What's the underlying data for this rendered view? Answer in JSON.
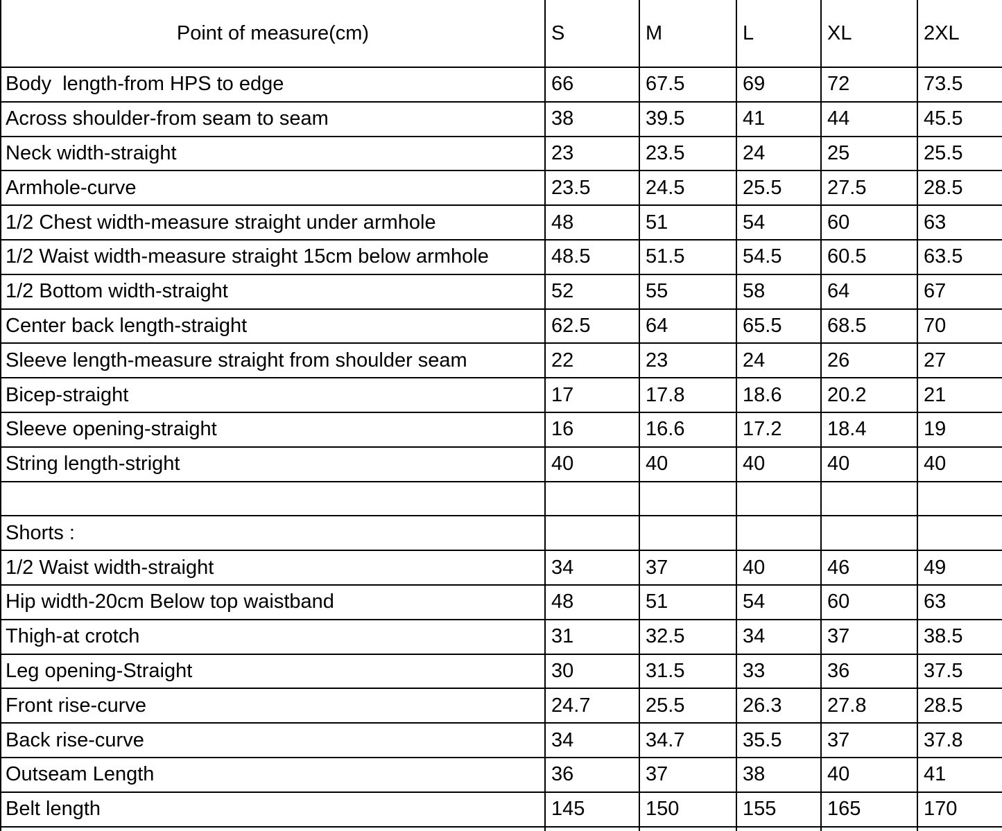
{
  "table": {
    "header": {
      "measure_column_label": "Point of measure(cm)",
      "size_labels": [
        "S",
        "M",
        "L",
        "XL",
        "2XL"
      ]
    },
    "rows": [
      {
        "label": "Body  length-from HPS to edge",
        "values": [
          "66",
          "67.5",
          "69",
          "72",
          "73.5"
        ]
      },
      {
        "label": "Across shoulder-from seam to seam",
        "values": [
          "38",
          "39.5",
          "41",
          "44",
          "45.5"
        ]
      },
      {
        "label": "Neck width-straight",
        "values": [
          "23",
          "23.5",
          "24",
          "25",
          "25.5"
        ]
      },
      {
        "label": "Armhole-curve",
        "values": [
          "23.5",
          "24.5",
          "25.5",
          "27.5",
          "28.5"
        ]
      },
      {
        "label": "1/2 Chest width-measure straight under armhole",
        "values": [
          "48",
          "51",
          "54",
          "60",
          "63"
        ]
      },
      {
        "label": "1/2 Waist width-measure straight 15cm below armhole",
        "values": [
          "48.5",
          "51.5",
          "54.5",
          "60.5",
          "63.5"
        ]
      },
      {
        "label": "1/2 Bottom width-straight",
        "values": [
          "52",
          "55",
          "58",
          "64",
          "67"
        ]
      },
      {
        "label": "Center back length-straight",
        "values": [
          "62.5",
          "64",
          "65.5",
          "68.5",
          "70"
        ]
      },
      {
        "label": "Sleeve length-measure straight from shoulder seam",
        "values": [
          "22",
          "23",
          "24",
          "26",
          "27"
        ]
      },
      {
        "label": "Bicep-straight",
        "values": [
          "17",
          "17.8",
          "18.6",
          "20.2",
          "21"
        ]
      },
      {
        "label": "Sleeve opening-straight",
        "values": [
          "16",
          "16.6",
          "17.2",
          "18.4",
          "19"
        ]
      },
      {
        "label": "String length-stright",
        "values": [
          "40",
          "40",
          "40",
          "40",
          "40"
        ]
      },
      {
        "label": "",
        "values": [
          "",
          "",
          "",
          "",
          ""
        ]
      },
      {
        "label": "Shorts :",
        "values": [
          "",
          "",
          "",
          "",
          ""
        ]
      },
      {
        "label": "1/2 Waist width-straight",
        "values": [
          "34",
          "37",
          "40",
          "46",
          "49"
        ]
      },
      {
        "label": "Hip width-20cm Below top waistband",
        "values": [
          "48",
          "51",
          "54",
          "60",
          "63"
        ]
      },
      {
        "label": "Thigh-at crotch",
        "values": [
          "31",
          "32.5",
          "34",
          "37",
          "38.5"
        ]
      },
      {
        "label": "Leg opening-Straight",
        "values": [
          "30",
          "31.5",
          "33",
          "36",
          "37.5"
        ]
      },
      {
        "label": "Front rise-curve",
        "values": [
          "24.7",
          "25.5",
          "26.3",
          "27.8",
          "28.5"
        ]
      },
      {
        "label": "Back rise-curve",
        "values": [
          "34",
          "34.7",
          "35.5",
          "37",
          "37.8"
        ]
      },
      {
        "label": "Outseam Length",
        "values": [
          "36",
          "37",
          "38",
          "40",
          "41"
        ]
      },
      {
        "label": "Belt length",
        "values": [
          "145",
          "150",
          "155",
          "165",
          "170"
        ]
      },
      {
        "label": "",
        "values": [
          "",
          "",
          "",
          "",
          ""
        ]
      }
    ]
  },
  "colors": {
    "border": "#000000",
    "text": "#000000",
    "background": "#ffffff"
  }
}
